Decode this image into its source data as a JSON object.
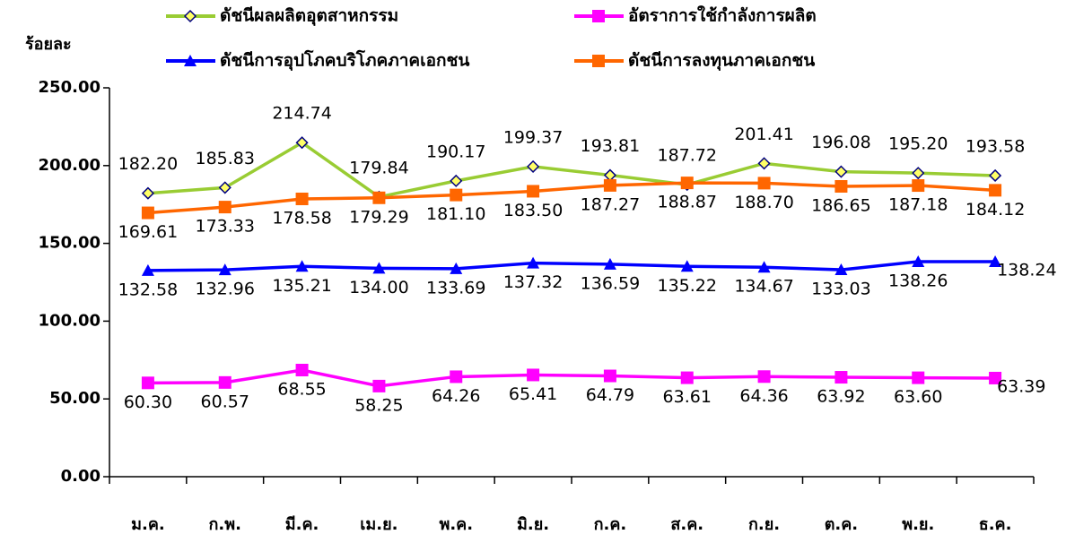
{
  "chart_data": {
    "type": "line",
    "y_label": "ร้อยละ",
    "categories": [
      "ม.ค.",
      "ก.พ.",
      "มี.ค.",
      "เม.ย.",
      "พ.ค.",
      "มิ.ย.",
      "ก.ค.",
      "ส.ค.",
      "ก.ย.",
      "ต.ค.",
      "พ.ย.",
      "ธ.ค."
    ],
    "ylim": [
      0,
      250
    ],
    "yticks": [
      {
        "value": 0,
        "label": "0.00"
      },
      {
        "value": 50,
        "label": "50.00"
      },
      {
        "value": 100,
        "label": "100.00"
      },
      {
        "value": 150,
        "label": "150.00"
      },
      {
        "value": 200,
        "label": "200.00"
      },
      {
        "value": 250,
        "label": "250.00"
      }
    ],
    "series": [
      {
        "name": "ดัชนีผลผลิตอุตสาหกรรม",
        "color": "#99cc33",
        "marker": "diamond",
        "values": [
          182.2,
          185.83,
          214.74,
          179.84,
          190.17,
          199.37,
          193.81,
          187.72,
          201.41,
          196.08,
          195.2,
          193.58
        ],
        "value_labels": [
          "182.20",
          "185.83",
          "214.74",
          "179.84",
          "190.17",
          "199.37",
          "193.81",
          "187.72",
          "201.41",
          "196.08",
          "195.20",
          "193.58"
        ]
      },
      {
        "name": "อัตราการใช้กำลังการผลิต",
        "color": "#ff00ff",
        "marker": "square",
        "values": [
          60.3,
          60.57,
          68.55,
          58.25,
          64.26,
          65.41,
          64.79,
          63.61,
          64.36,
          63.92,
          63.6,
          63.39
        ],
        "value_labels": [
          "60.30",
          "60.57",
          "68.55",
          "58.25",
          "64.26",
          "65.41",
          "64.79",
          "63.61",
          "64.36",
          "63.92",
          "63.60",
          "63.39"
        ]
      },
      {
        "name": "ดัชนีการอุปโภคบริโภคภาคเอกชน",
        "color": "#0000ff",
        "marker": "triangle",
        "values": [
          132.58,
          132.96,
          135.21,
          134.0,
          133.69,
          137.32,
          136.59,
          135.22,
          134.67,
          133.03,
          138.26,
          138.24
        ],
        "value_labels": [
          "132.58",
          "132.96",
          "135.21",
          "134.00",
          "133.69",
          "137.32",
          "136.59",
          "135.22",
          "134.67",
          "133.03",
          "138.26",
          "138.24"
        ]
      },
      {
        "name": "ดัชนีการลงทุนภาคเอกชน",
        "color": "#ff6600",
        "marker": "square",
        "values": [
          169.61,
          173.33,
          178.58,
          179.29,
          181.1,
          183.5,
          187.27,
          188.87,
          188.7,
          186.65,
          187.18,
          184.12
        ],
        "value_labels": [
          "169.61",
          "173.33",
          "178.58",
          "179.29",
          "181.10",
          "183.50",
          "187.27",
          "188.87",
          "188.70",
          "186.65",
          "187.18",
          "184.12"
        ]
      }
    ]
  }
}
